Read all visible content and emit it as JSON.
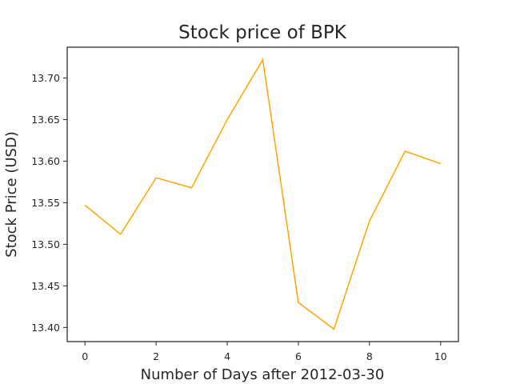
{
  "chart_data": {
    "type": "line",
    "title": "Stock price of BPK",
    "xlabel": "Number of Days after 2012-03-30",
    "ylabel": "Stock Price (USD)",
    "x": [
      0,
      1,
      2,
      3,
      4,
      5,
      6,
      7,
      8,
      9,
      10
    ],
    "series": [
      {
        "color": "#FFA500",
        "values": [
          13.547,
          13.512,
          13.58,
          13.568,
          13.65,
          13.722,
          13.43,
          13.398,
          13.528,
          13.612,
          13.597
        ]
      }
    ],
    "xticks": [
      0,
      2,
      4,
      6,
      8,
      10
    ],
    "yticks": [
      "13.40",
      "13.45",
      "13.50",
      "13.55",
      "13.60",
      "13.65",
      "13.70"
    ],
    "xlim": [
      -0.5,
      10.5
    ],
    "ylim": [
      13.383,
      13.737
    ],
    "grid": false,
    "legend": "none"
  }
}
